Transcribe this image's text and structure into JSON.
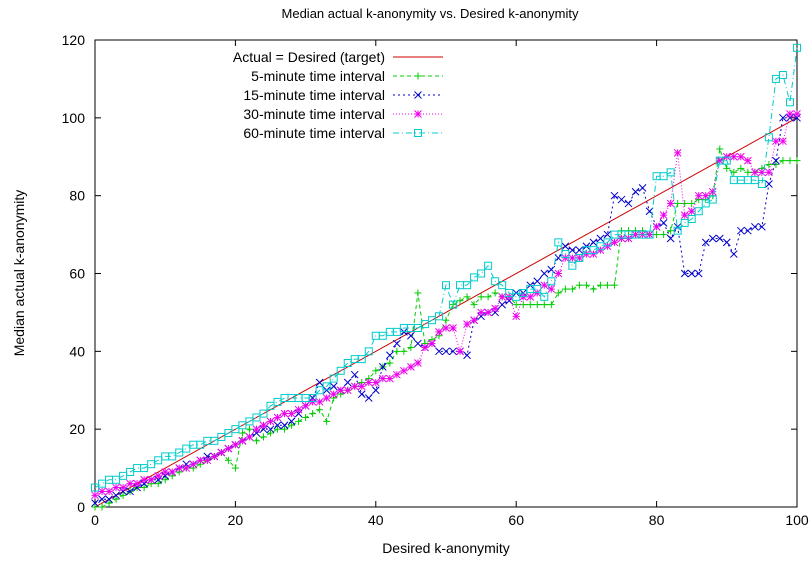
{
  "chart_data": {
    "type": "line",
    "title": "Median actual k-anonymity vs. Desired k-anonymity",
    "xlabel": "Desired k-anonymity",
    "ylabel": "Median actual k-anonymity",
    "xlim": [
      0,
      100
    ],
    "ylim": [
      0,
      120
    ],
    "xticks": [
      "0",
      "20",
      "40",
      "60",
      "80",
      "100"
    ],
    "yticks": [
      "0",
      "20",
      "40",
      "60",
      "80",
      "100",
      "120"
    ],
    "grid": false,
    "legend_position": "top-left",
    "series": [
      {
        "name": "Actual = Desired (target)",
        "color": "#cc0000",
        "marker": "none",
        "dash": "solid",
        "x": [
          0,
          100
        ],
        "y": [
          0,
          100
        ]
      },
      {
        "name": "5-minute time interval",
        "color": "#00cc00",
        "marker": "plus",
        "dash": "4,3",
        "x": [
          0,
          1,
          2,
          3,
          4,
          5,
          6,
          7,
          8,
          9,
          10,
          11,
          12,
          13,
          14,
          15,
          16,
          17,
          18,
          19,
          20,
          21,
          22,
          23,
          24,
          25,
          26,
          27,
          28,
          29,
          30,
          31,
          32,
          33,
          34,
          35,
          36,
          37,
          38,
          39,
          40,
          41,
          42,
          43,
          44,
          45,
          46,
          47,
          48,
          49,
          50,
          51,
          52,
          53,
          54,
          55,
          56,
          57,
          58,
          59,
          60,
          61,
          62,
          63,
          64,
          65,
          66,
          67,
          68,
          69,
          70,
          71,
          72,
          73,
          74,
          75,
          76,
          77,
          78,
          79,
          80,
          81,
          82,
          83,
          84,
          85,
          86,
          87,
          88,
          89,
          90,
          91,
          92,
          93,
          94,
          95,
          96,
          97,
          98,
          99,
          100
        ],
        "y": [
          0,
          0,
          1,
          2,
          3,
          4,
          5,
          5,
          6,
          6,
          7,
          8,
          9,
          10,
          10,
          11,
          12,
          13,
          14,
          12,
          10,
          19,
          20,
          17,
          18,
          19,
          20,
          20,
          21,
          22,
          23,
          24,
          25,
          22,
          28,
          29,
          30,
          31,
          32,
          33,
          35,
          36,
          37,
          40,
          40,
          41,
          55,
          42,
          43,
          44,
          48,
          52,
          53,
          54,
          52,
          54,
          54,
          55,
          54,
          54,
          52,
          52,
          52,
          52,
          52,
          52,
          55,
          56,
          56,
          57,
          57,
          56,
          57,
          57,
          57,
          71,
          71,
          71,
          71,
          70,
          70,
          70,
          71,
          78,
          78,
          78,
          79,
          79,
          80,
          92,
          87,
          86,
          87,
          86,
          86,
          87,
          88,
          88,
          89,
          89,
          89
        ]
      },
      {
        "name": "15-minute time interval",
        "color": "#0000cc",
        "marker": "x",
        "dash": "2,3",
        "x": [
          0,
          1,
          2,
          3,
          4,
          5,
          6,
          7,
          8,
          9,
          10,
          11,
          12,
          13,
          14,
          15,
          16,
          17,
          18,
          19,
          20,
          21,
          22,
          23,
          24,
          25,
          26,
          27,
          28,
          29,
          30,
          31,
          32,
          33,
          34,
          35,
          36,
          37,
          38,
          39,
          40,
          41,
          42,
          43,
          44,
          45,
          46,
          47,
          48,
          49,
          50,
          51,
          52,
          53,
          54,
          55,
          56,
          57,
          58,
          59,
          60,
          61,
          62,
          63,
          64,
          65,
          66,
          67,
          68,
          69,
          70,
          71,
          72,
          73,
          74,
          75,
          76,
          77,
          78,
          79,
          80,
          81,
          82,
          83,
          84,
          85,
          86,
          87,
          88,
          89,
          90,
          91,
          92,
          93,
          94,
          95,
          96,
          97,
          98,
          99,
          100
        ],
        "y": [
          1,
          2,
          2,
          3,
          4,
          4,
          5,
          6,
          7,
          7,
          8,
          9,
          10,
          11,
          11,
          12,
          13,
          13,
          14,
          15,
          16,
          17,
          18,
          19,
          20,
          20,
          21,
          21,
          22,
          24,
          26,
          28,
          32,
          30,
          31,
          30,
          32,
          34,
          29,
          28,
          30,
          36,
          39,
          42,
          45,
          44,
          42,
          41,
          42,
          40,
          40,
          40,
          40,
          39,
          48,
          49,
          50,
          50,
          52,
          53,
          55,
          55,
          57,
          58,
          60,
          61,
          64,
          67,
          66,
          66,
          67,
          68,
          69,
          70,
          80,
          79,
          78,
          81,
          82,
          76,
          72,
          73,
          69,
          72,
          60,
          60,
          60,
          68,
          69,
          69,
          68,
          65,
          71,
          71,
          72,
          72,
          83,
          89,
          100,
          100,
          100
        ]
      },
      {
        "name": "30-minute time interval",
        "color": "#ee00ee",
        "marker": "star",
        "dash": "1,2",
        "x": [
          0,
          1,
          2,
          3,
          4,
          5,
          6,
          7,
          8,
          9,
          10,
          11,
          12,
          13,
          14,
          15,
          16,
          17,
          18,
          19,
          20,
          21,
          22,
          23,
          24,
          25,
          26,
          27,
          28,
          29,
          30,
          31,
          32,
          33,
          34,
          35,
          36,
          37,
          38,
          39,
          40,
          41,
          42,
          43,
          44,
          45,
          46,
          47,
          48,
          49,
          50,
          51,
          52,
          53,
          54,
          55,
          56,
          57,
          58,
          59,
          60,
          61,
          62,
          63,
          64,
          65,
          66,
          67,
          68,
          69,
          70,
          71,
          72,
          73,
          74,
          75,
          76,
          77,
          78,
          79,
          80,
          81,
          82,
          83,
          84,
          85,
          86,
          87,
          88,
          89,
          90,
          91,
          92,
          93,
          94,
          95,
          96,
          97,
          98,
          99,
          100
        ],
        "y": [
          3,
          4,
          4,
          5,
          5,
          6,
          6,
          7,
          7,
          8,
          9,
          9,
          10,
          10,
          11,
          12,
          12,
          13,
          14,
          15,
          16,
          17,
          18,
          20,
          21,
          22,
          23,
          24,
          24,
          25,
          26,
          27,
          27,
          28,
          29,
          30,
          30,
          31,
          31,
          32,
          32,
          33,
          33,
          34,
          35,
          36,
          37,
          41,
          42,
          45,
          46,
          46,
          40,
          47,
          48,
          50,
          50,
          51,
          54,
          54,
          49,
          54,
          54,
          55,
          57,
          56,
          60,
          64,
          64,
          64,
          65,
          65,
          66,
          67,
          68,
          69,
          69,
          70,
          70,
          70,
          72,
          75,
          78,
          91,
          75,
          76,
          80,
          80,
          81,
          89,
          90,
          90,
          90,
          89,
          86,
          86,
          86,
          94,
          94,
          101,
          101
        ]
      },
      {
        "name": "60-minute time interval",
        "color": "#00cccc",
        "marker": "square",
        "dash": "6,3,1,3",
        "x": [
          0,
          1,
          2,
          3,
          4,
          5,
          6,
          7,
          8,
          9,
          10,
          11,
          12,
          13,
          14,
          15,
          16,
          17,
          18,
          19,
          20,
          21,
          22,
          23,
          24,
          25,
          26,
          27,
          28,
          29,
          30,
          31,
          32,
          33,
          34,
          35,
          36,
          37,
          38,
          39,
          40,
          41,
          42,
          43,
          44,
          45,
          46,
          47,
          48,
          49,
          50,
          51,
          52,
          53,
          54,
          55,
          56,
          57,
          58,
          59,
          60,
          61,
          62,
          63,
          64,
          65,
          66,
          67,
          68,
          69,
          70,
          71,
          72,
          73,
          74,
          75,
          76,
          77,
          78,
          79,
          80,
          81,
          82,
          83,
          84,
          85,
          86,
          87,
          88,
          89,
          90,
          91,
          92,
          93,
          94,
          95,
          96,
          97,
          98,
          99,
          100
        ],
        "y": [
          5,
          6,
          7,
          7,
          8,
          9,
          10,
          10,
          11,
          12,
          13,
          13,
          14,
          15,
          16,
          16,
          17,
          17,
          18,
          19,
          20,
          21,
          22,
          23,
          24,
          26,
          27,
          28,
          28,
          28,
          28,
          28,
          30,
          31,
          33,
          35,
          37,
          38,
          38,
          40,
          44,
          44,
          45,
          45,
          46,
          46,
          46,
          47,
          48,
          49,
          57,
          52,
          57,
          57,
          59,
          60,
          62,
          58,
          57,
          55,
          54,
          55,
          56,
          56,
          54,
          58,
          68,
          65,
          62,
          64,
          66,
          66,
          67,
          68,
          70,
          70,
          70,
          70,
          70,
          70,
          85,
          85,
          86,
          71,
          73,
          74,
          76,
          78,
          79,
          89,
          89,
          84,
          84,
          84,
          84,
          83,
          95,
          110,
          111,
          104,
          118
        ]
      }
    ]
  }
}
